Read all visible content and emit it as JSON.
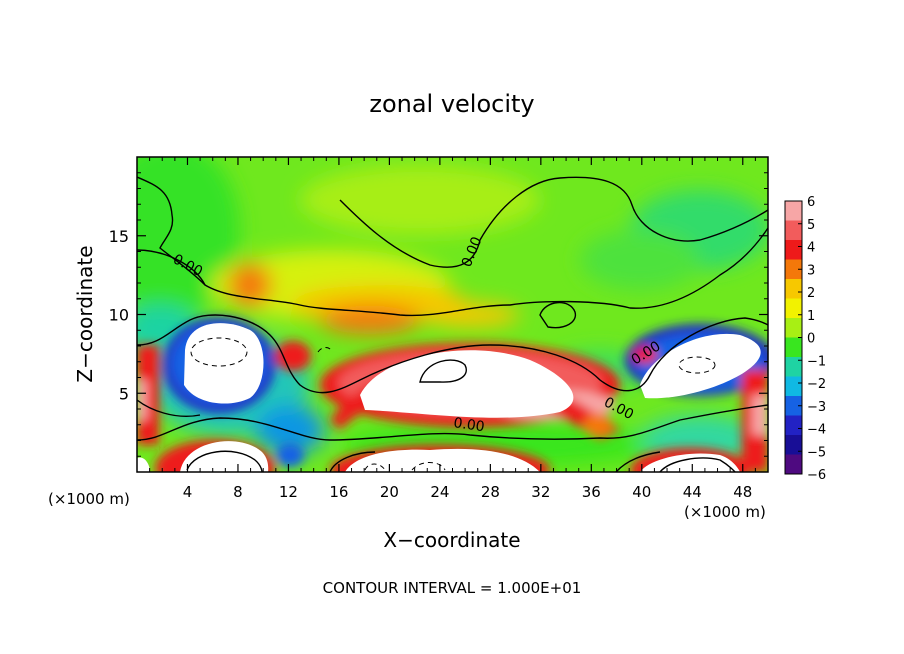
{
  "chart_data": {
    "type": "heatmap",
    "title": "zonal velocity",
    "xlabel": "X−coordinate",
    "ylabel": "Z−coordinate",
    "x_unit": "(×1000 m)",
    "z_unit": "(×1000 m)",
    "xlim": [
      0,
      50
    ],
    "ylim": [
      0,
      20
    ],
    "x_ticks": [
      4,
      8,
      12,
      16,
      20,
      24,
      28,
      32,
      36,
      40,
      44,
      48
    ],
    "y_ticks": [
      5,
      10,
      15
    ],
    "colorbar": {
      "levels": [
        6,
        5,
        4,
        3,
        2,
        1,
        0,
        -1,
        -2,
        -3,
        -4,
        -5,
        -6
      ],
      "labels": [
        "6",
        "5",
        "4",
        "3",
        "2",
        "1",
        "0",
        "−1",
        "−2",
        "−3",
        "−4",
        "−5",
        "−6"
      ],
      "colors": [
        "#f7a6a6",
        "#f25c5c",
        "#ee1a1a",
        "#f4780a",
        "#f7c800",
        "#f2f200",
        "#a8ef14",
        "#39e61f",
        "#1fd3a3",
        "#10b9e3",
        "#1662e4",
        "#2222c4",
        "#180e96",
        "#4e0a80"
      ]
    },
    "contour_labels": [
      "0.00",
      "0.00",
      "0.00",
      "0.00",
      "0.00"
    ],
    "contour_interval_text": "CONTOUR INTERVAL = 1.000E+01"
  }
}
